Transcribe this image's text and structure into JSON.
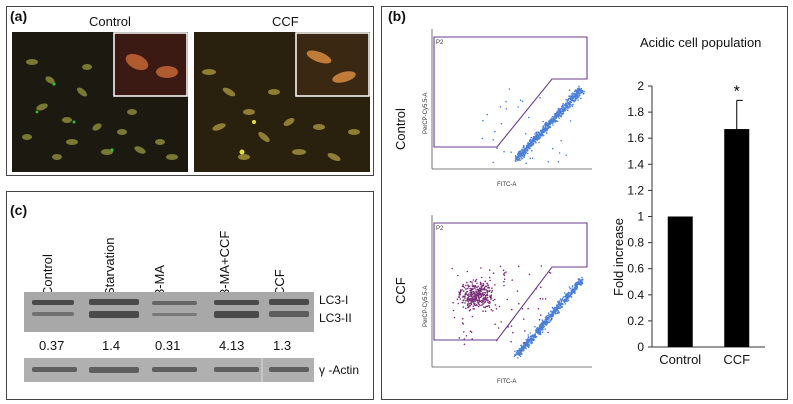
{
  "panel_a": {
    "label": "(a)",
    "titles": [
      "Control",
      "CCF"
    ]
  },
  "panel_b": {
    "label": "(b)",
    "flow_rows": [
      "Control",
      "CCF"
    ],
    "gate_label": "P2",
    "x_axis_label": "FITC-A",
    "y_axis_label": "PerCP-Cy5.5-A",
    "chart_data": {
      "type": "bar",
      "title": "Acidic cell population",
      "categories": [
        "Control",
        "CCF"
      ],
      "values": [
        1.0,
        1.67
      ],
      "error": [
        0,
        0.22
      ],
      "significance": [
        "",
        "*"
      ],
      "ylabel": "Fold increase",
      "xlabel": "",
      "ylim": [
        0,
        2
      ],
      "yticks": [
        "0",
        "0.2",
        "0.4",
        "0.6",
        "0.8",
        "1",
        "1.2",
        "1.4",
        "1.6",
        "1.8",
        "2"
      ],
      "grid": false,
      "color": "#000000"
    }
  },
  "panel_c": {
    "label": "(c)",
    "lanes": [
      "Control",
      "Starvation",
      "3-MA",
      "3-MA+CCF",
      "CCF"
    ],
    "ratios": [
      "0.37",
      "1.4",
      "0.31",
      "4.13",
      "1.3"
    ],
    "band_labels": [
      "LC3-I",
      "LC3-II"
    ],
    "actin_label": "γ -Actin"
  }
}
